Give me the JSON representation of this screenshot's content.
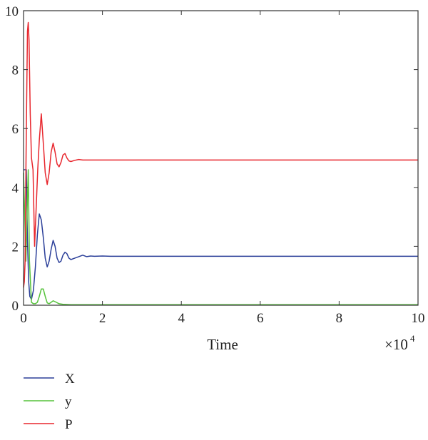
{
  "chart_data": {
    "type": "line",
    "xlabel": "Time",
    "x_multiplier_label": "×10",
    "x_multiplier_exp": "4",
    "ylabel": "",
    "xlim": [
      0,
      10
    ],
    "ylim": [
      0,
      10
    ],
    "x_ticks": [
      0,
      2,
      4,
      6,
      8,
      10
    ],
    "y_ticks": [
      0,
      2,
      4,
      6,
      8,
      10
    ],
    "grid": false,
    "legend_position": "bottom-left",
    "series": [
      {
        "name": "X",
        "color": "#2b3f99",
        "x": [
          0,
          0.03,
          0.07,
          0.1,
          0.13,
          0.16,
          0.2,
          0.25,
          0.3,
          0.35,
          0.4,
          0.45,
          0.5,
          0.55,
          0.6,
          0.65,
          0.7,
          0.75,
          0.8,
          0.85,
          0.9,
          0.95,
          1.0,
          1.05,
          1.1,
          1.15,
          1.2,
          1.3,
          1.4,
          1.5,
          1.6,
          1.7,
          1.8,
          2.0,
          2.2,
          3,
          5,
          7,
          10
        ],
        "y": [
          4.6,
          4.6,
          4.6,
          2.2,
          0.8,
          0.3,
          0.2,
          0.5,
          1.3,
          2.4,
          3.1,
          2.9,
          2.3,
          1.6,
          1.3,
          1.5,
          1.9,
          2.2,
          2.0,
          1.6,
          1.45,
          1.5,
          1.7,
          1.8,
          1.75,
          1.6,
          1.55,
          1.6,
          1.65,
          1.7,
          1.65,
          1.67,
          1.66,
          1.67,
          1.66,
          1.66,
          1.66,
          1.66,
          1.66
        ]
      },
      {
        "name": "y",
        "color": "#55c23a",
        "x": [
          0,
          0.03,
          0.06,
          0.09,
          0.12,
          0.15,
          0.2,
          0.25,
          0.3,
          0.35,
          0.4,
          0.45,
          0.5,
          0.55,
          0.6,
          0.65,
          0.7,
          0.75,
          0.8,
          0.9,
          1.0,
          1.2,
          1.5,
          2,
          3,
          5,
          7,
          10
        ],
        "y": [
          4.5,
          3.0,
          1.5,
          3.2,
          4.6,
          1.5,
          0.1,
          0.05,
          0.05,
          0.1,
          0.3,
          0.55,
          0.55,
          0.3,
          0.08,
          0.05,
          0.1,
          0.15,
          0.12,
          0.05,
          0.03,
          0.02,
          0.02,
          0.02,
          0.02,
          0.02,
          0.02,
          0.02
        ]
      },
      {
        "name": "P",
        "color": "#e8262d",
        "x": [
          0,
          0.02,
          0.04,
          0.06,
          0.08,
          0.1,
          0.12,
          0.14,
          0.17,
          0.2,
          0.24,
          0.28,
          0.32,
          0.36,
          0.4,
          0.45,
          0.5,
          0.55,
          0.6,
          0.65,
          0.7,
          0.75,
          0.8,
          0.85,
          0.9,
          0.95,
          1.0,
          1.05,
          1.1,
          1.15,
          1.2,
          1.3,
          1.4,
          1.5,
          2,
          3,
          5,
          7,
          10
        ],
        "y": [
          0.6,
          0.8,
          1.5,
          4.5,
          7.0,
          9.3,
          9.6,
          9.0,
          6.5,
          5.0,
          4.6,
          2.0,
          3.3,
          4.6,
          5.6,
          6.5,
          5.5,
          4.5,
          4.1,
          4.5,
          5.2,
          5.5,
          5.2,
          4.8,
          4.7,
          4.85,
          5.1,
          5.15,
          5.0,
          4.9,
          4.88,
          4.92,
          4.95,
          4.93,
          4.93,
          4.93,
          4.93,
          4.93,
          4.93
        ]
      }
    ]
  }
}
